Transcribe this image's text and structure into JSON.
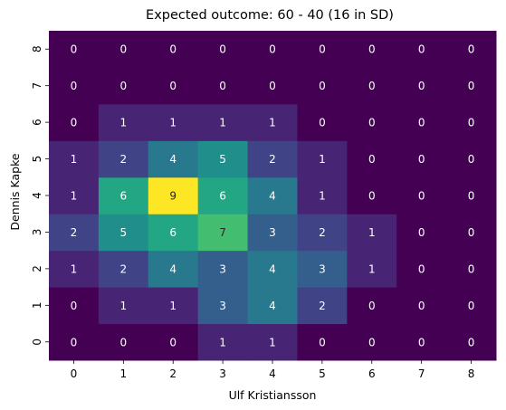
{
  "chart_data": {
    "type": "heatmap",
    "title": "Expected outcome: 60 - 40 (16 in SD)",
    "xlabel": "Ulf Kristiansson",
    "ylabel": "Dennis Kapke",
    "x_categories": [
      "0",
      "1",
      "2",
      "3",
      "4",
      "5",
      "6",
      "7",
      "8"
    ],
    "y_categories": [
      "0",
      "1",
      "2",
      "3",
      "4",
      "5",
      "6",
      "7",
      "8"
    ],
    "value_range": [
      0,
      9
    ],
    "colormap": "viridis",
    "grid": false,
    "legend": "none",
    "values": [
      [
        0,
        0,
        0,
        1,
        1,
        0,
        0,
        0,
        0
      ],
      [
        0,
        1,
        1,
        3,
        4,
        2,
        0,
        0,
        0
      ],
      [
        1,
        2,
        4,
        3,
        4,
        3,
        1,
        0,
        0
      ],
      [
        2,
        5,
        6,
        7,
        3,
        2,
        1,
        0,
        0
      ],
      [
        1,
        6,
        9,
        6,
        4,
        1,
        0,
        0,
        0
      ],
      [
        1,
        2,
        4,
        5,
        2,
        1,
        0,
        0,
        0
      ],
      [
        0,
        1,
        1,
        1,
        1,
        0,
        0,
        0,
        0
      ],
      [
        0,
        0,
        0,
        0,
        0,
        0,
        0,
        0,
        0
      ],
      [
        0,
        0,
        0,
        0,
        0,
        0,
        0,
        0,
        0
      ]
    ]
  }
}
